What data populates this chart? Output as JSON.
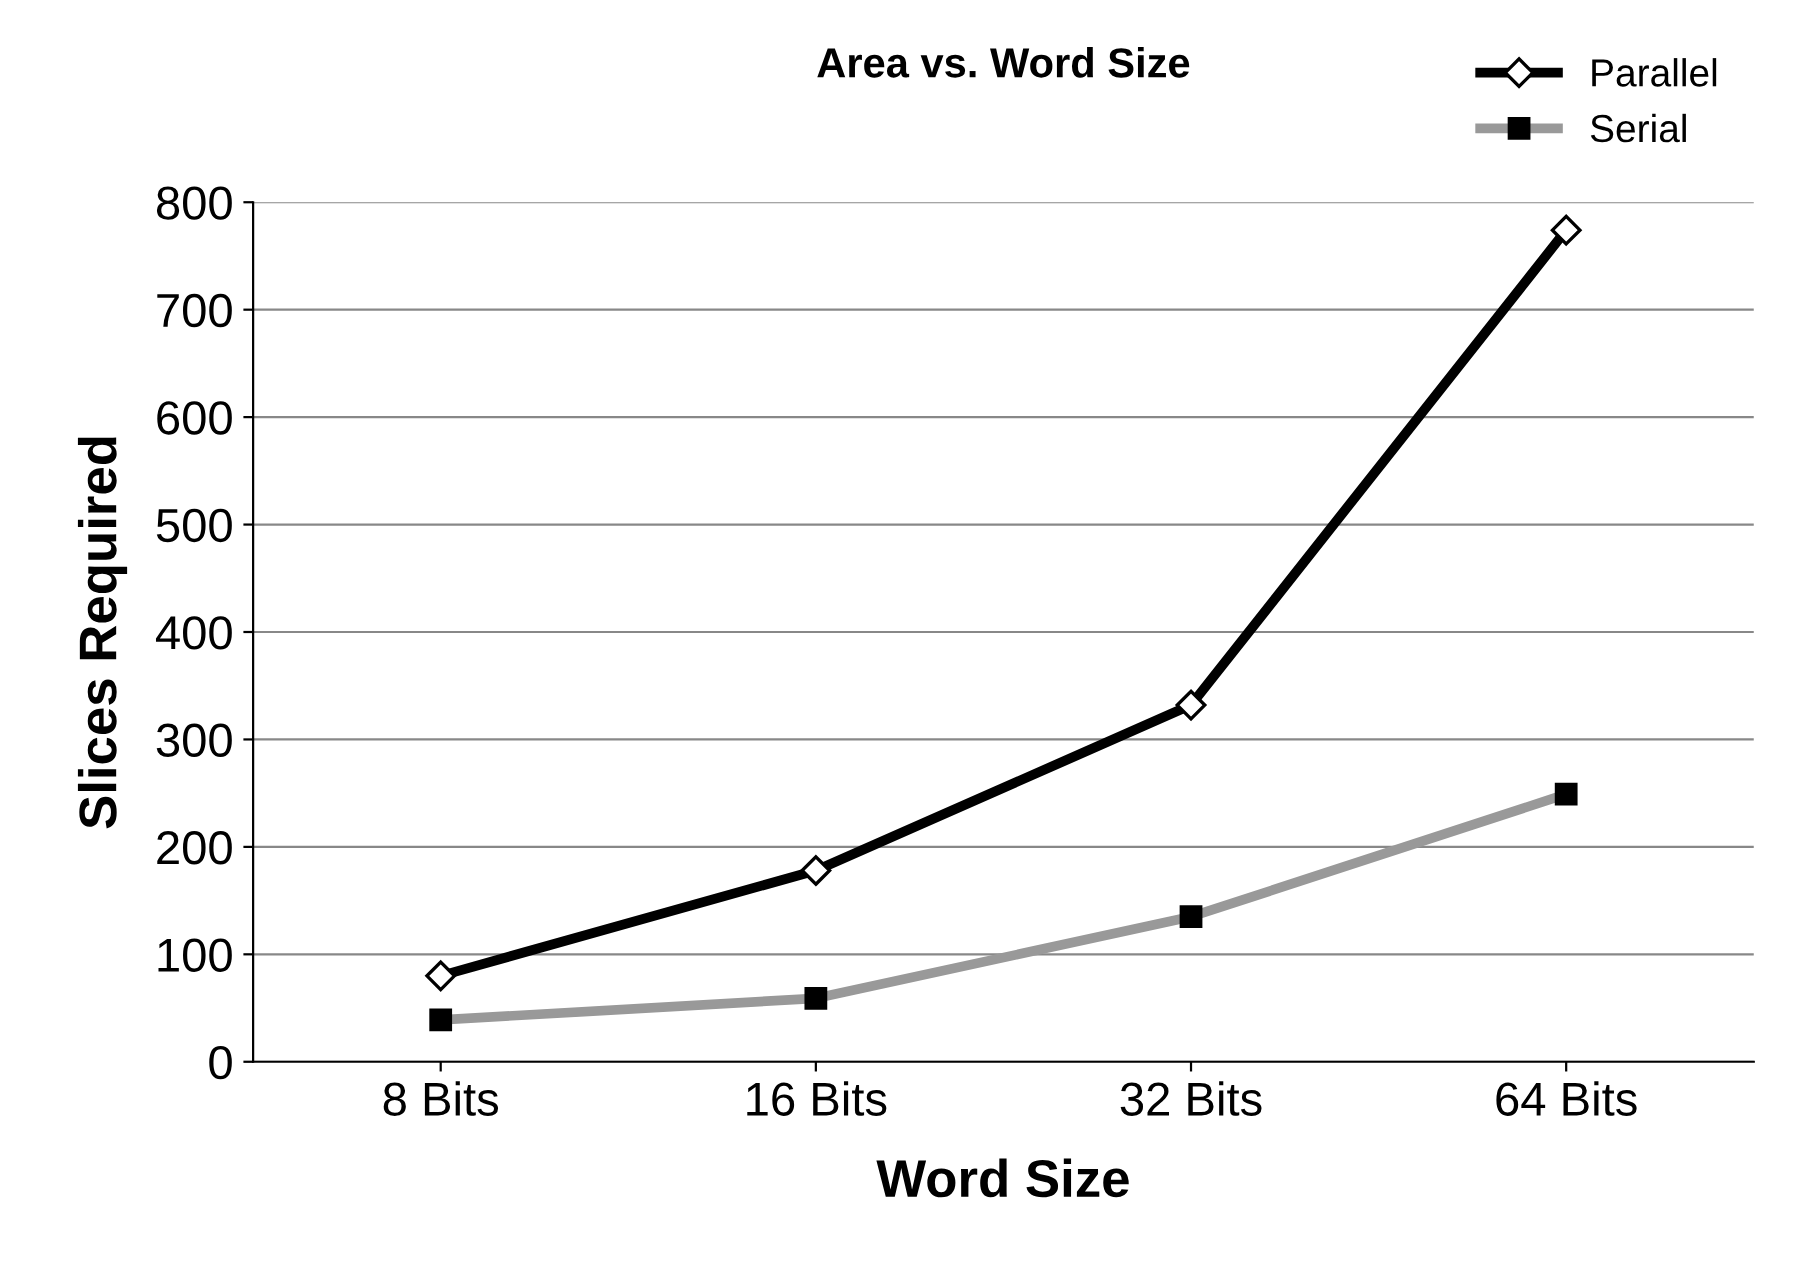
{
  "chart_data": {
    "type": "line",
    "title": "Area vs. Word Size",
    "xlabel": "Word Size",
    "ylabel": "Slices Required",
    "categories": [
      "8 Bits",
      "16 Bits",
      "32 Bits",
      "64 Bits"
    ],
    "series": [
      {
        "name": "Parallel",
        "color": "#000000",
        "marker": "diamond",
        "values": [
          80,
          178,
          332,
          774
        ]
      },
      {
        "name": "Serial",
        "color": "#999999",
        "marker": "square",
        "values": [
          39,
          59,
          135,
          249
        ]
      }
    ],
    "ylim": [
      0,
      800
    ],
    "yticks": [
      0,
      100,
      200,
      300,
      400,
      500,
      600,
      700,
      800
    ],
    "grid": "y",
    "legend": "top right",
    "line_style": "solid"
  }
}
